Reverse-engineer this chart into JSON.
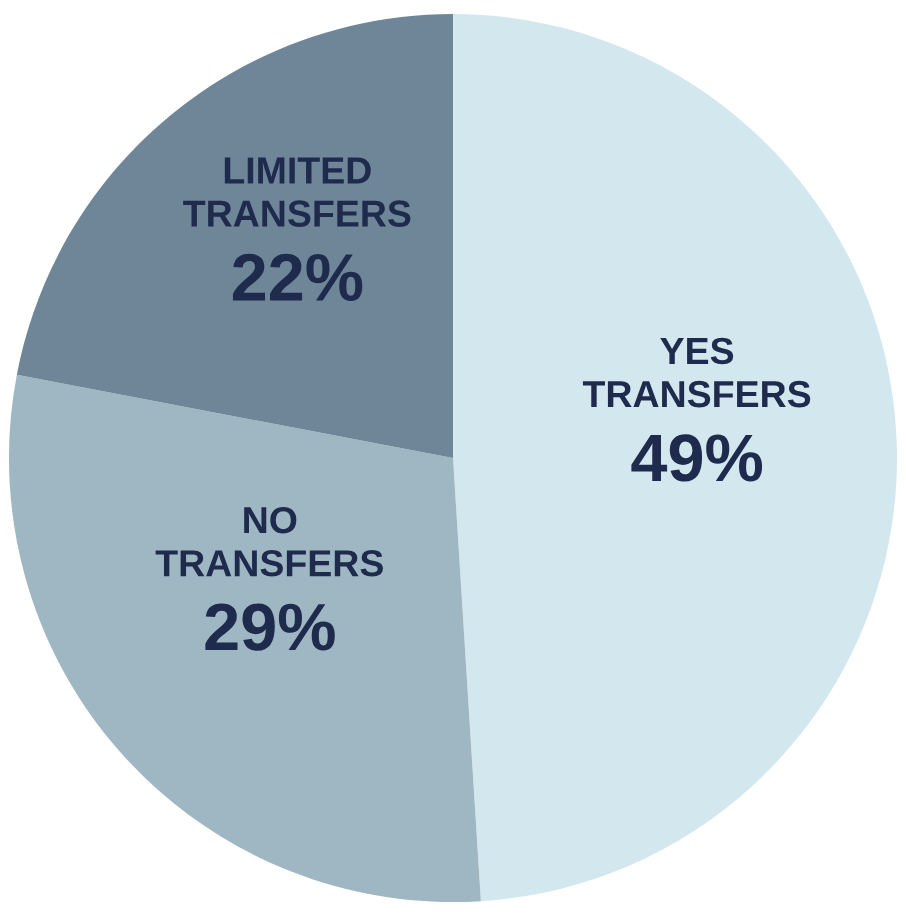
{
  "chart_data": {
    "type": "pie",
    "categories": [
      "YES\nTRANSFERS",
      "NO\nTRANSFERS",
      "LIMITED\nTRANSFERS"
    ],
    "values": [
      49,
      29,
      22
    ],
    "value_labels": [
      "49%",
      "29%",
      "22%"
    ],
    "colors": [
      "#d3e8ee",
      "#9fb6c3",
      "#6e8697"
    ]
  }
}
